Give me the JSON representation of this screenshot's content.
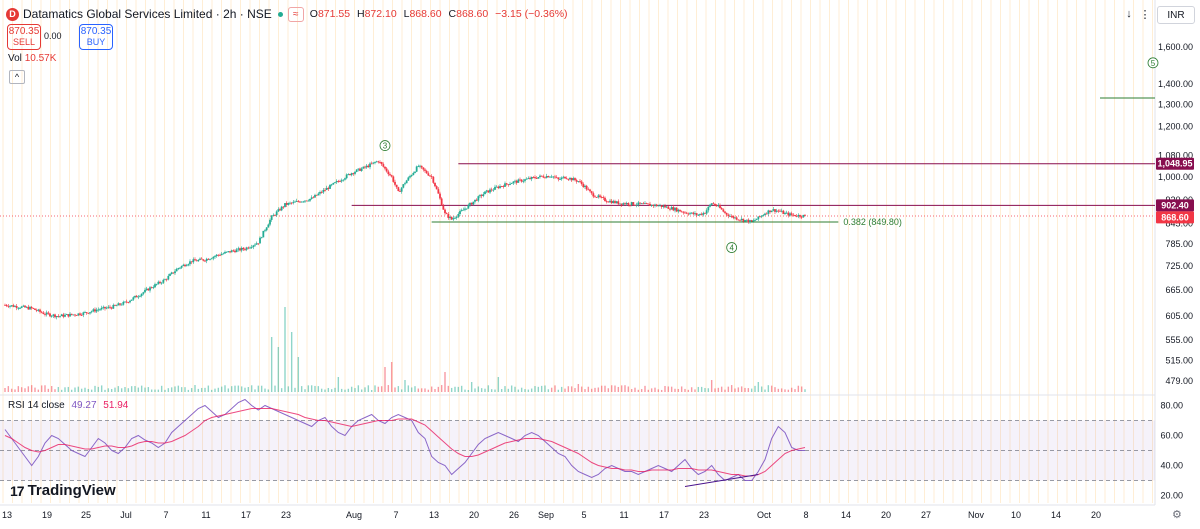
{
  "header": {
    "logo_letter": "D",
    "title": "Datamatics Global Services Limited · 2h · NSE",
    "wave_glyph": "≈",
    "open_label": "O",
    "open": "871.55",
    "high_label": "H",
    "high": "872.10",
    "low_label": "L",
    "low": "868.60",
    "close_label": "C",
    "close": "868.60",
    "change": "−3.15 (−0.36%)"
  },
  "trade": {
    "sell_price": "870.35",
    "sell_label": "SELL",
    "spread": "0.00",
    "buy_price": "870.35",
    "buy_label": "BUY"
  },
  "volume_label": "Vol",
  "volume_value": "10.57K",
  "rsi": {
    "label": "RSI 14 close",
    "value1": "49.27",
    "value2": "51.94"
  },
  "toolbar": {
    "currency": "INR",
    "down_icon": "arrow-down-icon",
    "menu_icon": "more-menu-icon"
  },
  "branding": "TradingView",
  "colors": {
    "up": "#22ab94",
    "down": "#f23645",
    "rsi_line": "#7e57c2",
    "rsi_ma": "#e91e63",
    "level_line": "#880e4f",
    "fib_line": "#2e7d32",
    "vline": "#ffcc80"
  },
  "chart_data": [
    {
      "type": "candlestick",
      "title": "Datamatics Global Services Limited · 2h · NSE",
      "price_axis_ticks": [
        "1,600.00",
        "1,400.00",
        "1,300.00",
        "1,200.00",
        "1,080.00",
        "1,000.00",
        "920.00",
        "845.00",
        "785.00",
        "725.00",
        "665.00",
        "605.00",
        "555.00",
        "515.00",
        "479.00"
      ],
      "price_scale": "log",
      "ylim": [
        460,
        1700
      ],
      "x_ticks": [
        "13",
        "19",
        "25",
        "Jul",
        "7",
        "11",
        "17",
        "23",
        "Aug",
        "7",
        "13",
        "20",
        "26",
        "Sep",
        "5",
        "11",
        "17",
        "23",
        "Oct",
        "8",
        "14",
        "20",
        "27",
        "Nov",
        "10",
        "14",
        "20"
      ],
      "price_path": [
        [
          0,
          630
        ],
        [
          4,
          622
        ],
        [
          6,
          610
        ],
        [
          8,
          605
        ],
        [
          10,
          608
        ],
        [
          12,
          612
        ],
        [
          14,
          620
        ],
        [
          16,
          625
        ],
        [
          18,
          635
        ],
        [
          20,
          652
        ],
        [
          22,
          672
        ],
        [
          24,
          690
        ],
        [
          26,
          720
        ],
        [
          28,
          738
        ],
        [
          30,
          742
        ],
        [
          32,
          755
        ],
        [
          34,
          765
        ],
        [
          36,
          772
        ],
        [
          38,
          790
        ],
        [
          40,
          865
        ],
        [
          42,
          905
        ],
        [
          44,
          915
        ],
        [
          46,
          925
        ],
        [
          48,
          955
        ],
        [
          50,
          985
        ],
        [
          52,
          1015
        ],
        [
          54,
          1035
        ],
        [
          56,
          1060
        ],
        [
          57,
          1030
        ],
        [
          58,
          1000
        ],
        [
          59,
          945
        ],
        [
          60,
          980
        ],
        [
          62,
          1040
        ],
        [
          64,
          1000
        ],
        [
          65,
          940
        ],
        [
          66,
          875
        ],
        [
          67,
          858
        ],
        [
          68,
          875
        ],
        [
          70,
          910
        ],
        [
          72,
          945
        ],
        [
          74,
          965
        ],
        [
          76,
          980
        ],
        [
          78,
          990
        ],
        [
          80,
          1000
        ],
        [
          82,
          1005
        ],
        [
          83,
          990
        ],
        [
          84,
          1000
        ],
        [
          86,
          985
        ],
        [
          87,
          965
        ],
        [
          88,
          940
        ],
        [
          90,
          920
        ],
        [
          92,
          910
        ],
        [
          94,
          908
        ],
        [
          96,
          905
        ],
        [
          98,
          902
        ],
        [
          100,
          893
        ],
        [
          102,
          880
        ],
        [
          104,
          872
        ],
        [
          105,
          880
        ],
        [
          106,
          910
        ],
        [
          107,
          898
        ],
        [
          108,
          878
        ],
        [
          109,
          866
        ],
        [
          110,
          860
        ],
        [
          111,
          855
        ],
        [
          112,
          850
        ],
        [
          113,
          862
        ],
        [
          114,
          878
        ],
        [
          115,
          888
        ],
        [
          116,
          885
        ],
        [
          117,
          876
        ],
        [
          118,
          872
        ],
        [
          119,
          870
        ],
        [
          120,
          868.6
        ]
      ],
      "volume_spikes": [
        [
          40,
          0.55
        ],
        [
          41,
          0.45
        ],
        [
          42,
          0.85
        ],
        [
          43,
          0.6
        ],
        [
          44,
          0.35
        ],
        [
          57,
          0.25
        ],
        [
          58,
          0.3
        ],
        [
          50,
          0.15
        ],
        [
          60,
          0.12
        ],
        [
          66,
          0.2
        ],
        [
          70,
          0.1
        ],
        [
          74,
          0.15
        ],
        [
          86,
          0.08
        ],
        [
          106,
          0.12
        ],
        [
          113,
          0.1
        ]
      ],
      "levels": [
        {
          "price": 1048.95,
          "label": "1,048.95"
        },
        {
          "price": 902.4,
          "label": "902.40"
        },
        {
          "price": 868.6,
          "label": "868.60"
        }
      ],
      "fib_level": {
        "price": 849.8,
        "label": "0.382 (849.80)"
      },
      "target_line": {
        "price": 1330
      },
      "wave_labels": [
        {
          "label": "3",
          "x": 57,
          "price": 1120
        },
        {
          "label": "4",
          "x": 109,
          "price": 775
        },
        {
          "label": "5",
          "x": 165,
          "price": 1510
        }
      ]
    },
    {
      "type": "line",
      "title": "RSI 14 close",
      "ylim": [
        15,
        85
      ],
      "y_ticks": [
        "80.00",
        "60.00",
        "40.00",
        "20.00"
      ],
      "band": [
        30,
        70
      ],
      "mid": 50,
      "series": [
        {
          "name": "RSI",
          "values": [
            64,
            58,
            52,
            46,
            40,
            46,
            55,
            60,
            58,
            54,
            50,
            48,
            46,
            52,
            58,
            55,
            50,
            48,
            52,
            58,
            60,
            57,
            55,
            52,
            55,
            62,
            66,
            70,
            74,
            78,
            80,
            76,
            72,
            74,
            78,
            82,
            84,
            80,
            77,
            80,
            78,
            76,
            74,
            72,
            70,
            68,
            66,
            70,
            72,
            66,
            62,
            60,
            66,
            70,
            72,
            74,
            70,
            68,
            72,
            74,
            72,
            70,
            62,
            58,
            46,
            42,
            40,
            34,
            38,
            42,
            48,
            54,
            58,
            60,
            62,
            60,
            58,
            56,
            60,
            62,
            60,
            56,
            52,
            48,
            46,
            40,
            36,
            34,
            32,
            34,
            38,
            40,
            38,
            36,
            36,
            34,
            36,
            38,
            40,
            38,
            36,
            40,
            44,
            38,
            34,
            36,
            40,
            34,
            30,
            32,
            34,
            30,
            30,
            36,
            44,
            58,
            66,
            62,
            52,
            50,
            50
          ]
        },
        {
          "name": "RSI MA",
          "values": [
            60,
            58,
            55,
            52,
            50,
            49,
            50,
            52,
            54,
            54,
            53,
            52,
            51,
            51,
            52,
            53,
            53,
            52,
            52,
            53,
            55,
            56,
            56,
            55,
            55,
            56,
            58,
            60,
            63,
            66,
            70,
            72,
            73,
            74,
            75,
            76,
            77,
            78,
            78,
            78,
            78,
            77,
            76,
            75,
            74,
            72,
            71,
            70,
            70,
            69,
            68,
            67,
            66,
            67,
            68,
            69,
            70,
            70,
            70,
            71,
            71,
            71,
            69,
            67,
            63,
            59,
            55,
            51,
            48,
            46,
            46,
            47,
            49,
            51,
            53,
            55,
            56,
            57,
            58,
            58,
            58,
            57,
            56,
            54,
            52,
            50,
            48,
            45,
            42,
            40,
            39,
            38,
            38,
            37,
            37,
            36,
            36,
            37,
            37,
            37,
            37,
            38,
            38,
            38,
            37,
            37,
            37,
            36,
            35,
            34,
            34,
            33,
            33,
            34,
            36,
            40,
            44,
            48,
            50,
            51,
            52
          ]
        }
      ],
      "divergence_line": {
        "from": [
          102,
          26
        ],
        "to": [
          113,
          34
        ]
      }
    }
  ]
}
